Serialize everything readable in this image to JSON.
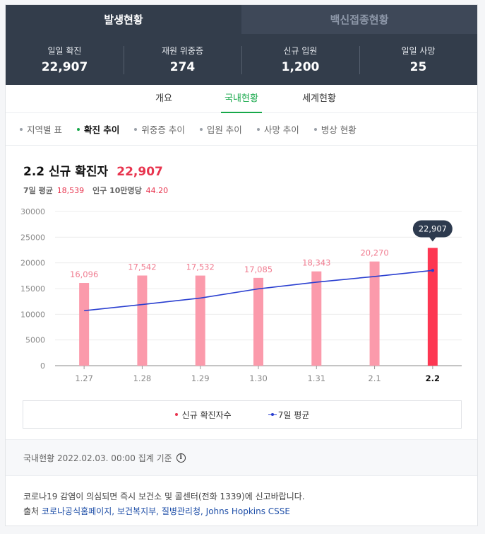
{
  "top_tabs": [
    "발생현황",
    "백신접종현황"
  ],
  "stats": [
    {
      "label": "일일 확진",
      "value": "22,907"
    },
    {
      "label": "재원 위중증",
      "value": "274"
    },
    {
      "label": "신규 입원",
      "value": "1,200"
    },
    {
      "label": "일일 사망",
      "value": "25"
    }
  ],
  "sub_tabs": [
    "개요",
    "국내현황",
    "세계현황"
  ],
  "filters": [
    "지역별 표",
    "확진 추이",
    "위중증 추이",
    "입원 추이",
    "사망 추이",
    "병상 현황"
  ],
  "chart_header": {
    "title": "2.2 신규 확진자",
    "total": "22,907",
    "avg_label": "7일 평균",
    "avg_value": "18,539",
    "per100k_label": "인구 10만명당",
    "per100k_value": "44.20"
  },
  "colors": {
    "bar": "#fb9aab",
    "bar_highlight": "#fd3752",
    "avg_line": "#2a3fd0",
    "dark": "#333d4b",
    "accent": "#17a84a"
  },
  "chart_data": {
    "type": "bar",
    "categories": [
      "1.27",
      "1.28",
      "1.29",
      "1.30",
      "1.31",
      "2.1",
      "2.2"
    ],
    "series": [
      {
        "name": "신규 확진자수",
        "values": [
          16096,
          17542,
          17532,
          17085,
          18343,
          20270,
          22907
        ]
      },
      {
        "name": "7일 평균",
        "type": "line",
        "values": [
          10700,
          11900,
          13150,
          14950,
          16250,
          17350,
          18539
        ]
      }
    ],
    "value_labels": [
      "16,096",
      "17,542",
      "17,532",
      "17,085",
      "18,343",
      "20,270",
      "22,907"
    ],
    "yticks": [
      0,
      5000,
      10000,
      15000,
      20000,
      25000,
      30000
    ],
    "ylim": [
      0,
      30000
    ],
    "highlight_index": 6,
    "grid": true,
    "legend_position": "bottom"
  },
  "legend": [
    "신규 확진자수",
    "7일 평균"
  ],
  "basis": "국내현황 2022.02.03. 00:00 집계 기준",
  "basis_icon": "info-icon",
  "notice": "코로나19 감염이 의심되면 즉시 보건소 및 콜센터(전화 1339)에 신고바랍니다.",
  "sources_label": "출처",
  "sources": [
    "코로나공식홈페이지",
    "보건복지부",
    "질병관리청",
    "Johns Hopkins CSSE"
  ]
}
